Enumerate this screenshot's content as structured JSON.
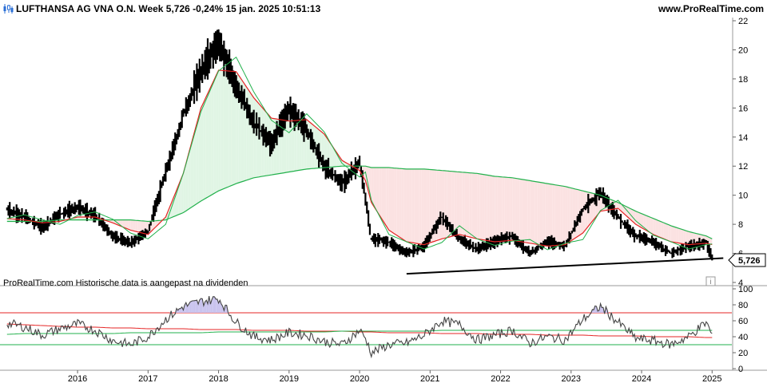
{
  "header": {
    "title": "LUFTHANSA AG VNA O.N. Week 5,726 -0,24% 15 jan. 2025 10:51:13",
    "site": "www.ProRealTime.com",
    "icon": "candlestick-icon"
  },
  "footnote": "ProRealTime.com  Historische data is aangepast na dividenden",
  "info_icon": "info-icon",
  "colors": {
    "price": "#000000",
    "ma_fast": "#e52424",
    "ma_slow": "#22b14c",
    "fill_red": "#fbe2e2",
    "fill_green": "#e0f5e4",
    "rsi_line": "#444444",
    "rsi_over_fill": "#c9c3ee",
    "grid": "#c8c8c8"
  },
  "last_price_label": "5,726",
  "chart_data": [
    {
      "type": "line",
      "title": "",
      "x": [
        "2015-01",
        "2015-04",
        "2015-07",
        "2015-10",
        "2016-01",
        "2016-04",
        "2016-07",
        "2016-10",
        "2017-01",
        "2017-04",
        "2017-07",
        "2017-10",
        "2018-01",
        "2018-04",
        "2018-07",
        "2018-10",
        "2019-01",
        "2019-04",
        "2019-07",
        "2019-10",
        "2020-01",
        "2020-02",
        "2020-03",
        "2020-06",
        "2020-09",
        "2020-12",
        "2021-03",
        "2021-06",
        "2021-09",
        "2021-12",
        "2022-03",
        "2022-06",
        "2022-09",
        "2022-12",
        "2023-03",
        "2023-06",
        "2023-09",
        "2023-12",
        "2024-03",
        "2024-06",
        "2024-09",
        "2024-12",
        "2025-01"
      ],
      "series": [
        {
          "values": [
            9.0,
            8.5,
            7.8,
            8.7,
            9.2,
            8.6,
            7.2,
            6.7,
            7.5,
            11.5,
            15.5,
            18.5,
            20.5,
            17.5,
            15.0,
            13.5,
            16.0,
            14.5,
            12.0,
            10.8,
            12.2,
            9.8,
            7.0,
            6.8,
            6.0,
            6.5,
            8.5,
            7.0,
            6.3,
            6.8,
            7.2,
            6.0,
            6.8,
            6.5,
            9.0,
            10.2,
            8.5,
            7.2,
            6.8,
            6.0,
            6.5,
            6.7,
            5.726
          ]
        },
        {
          "name": "",
          "values": [
            8.4,
            8.3,
            8.1,
            8.2,
            8.5,
            8.5,
            8.1,
            7.6,
            7.3,
            8.5,
            11.5,
            16.0,
            18.6,
            18.5,
            16.7,
            15.3,
            15.1,
            15.2,
            14.2,
            12.4,
            11.7,
            11.0,
            9.5,
            7.6,
            6.8,
            6.6,
            7.0,
            7.3,
            7.0,
            6.8,
            6.9,
            6.7,
            6.5,
            6.6,
            7.4,
            8.9,
            9.1,
            8.0,
            7.3,
            6.8,
            6.6,
            6.7,
            6.6
          ]
        },
        {
          "name": "",
          "values": [
            8.2,
            8.2,
            8.2,
            8.3,
            8.3,
            8.3,
            8.3,
            8.3,
            8.2,
            8.3,
            8.8,
            9.6,
            10.3,
            10.8,
            11.2,
            11.4,
            11.6,
            11.8,
            11.9,
            12.0,
            12.0,
            12.0,
            11.9,
            11.9,
            11.8,
            11.8,
            11.7,
            11.6,
            11.5,
            11.3,
            11.2,
            11.0,
            10.8,
            10.6,
            10.3,
            10.0,
            9.5,
            8.9,
            8.4,
            7.9,
            7.5,
            7.2,
            7.0
          ]
        }
      ],
      "ylim": [
        4,
        22
      ],
      "yticks": [
        4,
        6,
        8,
        10,
        12,
        14,
        16,
        18,
        20,
        22
      ],
      "xticks": [
        "2016",
        "2017",
        "2018",
        "2019",
        "2020",
        "2021",
        "2022",
        "2023",
        "2024",
        "2025"
      ],
      "support_line": {
        "x": [
          "2020-09",
          "2025-01"
        ],
        "y": [
          4.6,
          5.7
        ]
      },
      "scale": "linear"
    },
    {
      "type": "line",
      "title": "",
      "x": [
        "2015-01",
        "2015-04",
        "2015-07",
        "2015-10",
        "2016-01",
        "2016-04",
        "2016-07",
        "2016-10",
        "2017-01",
        "2017-04",
        "2017-07",
        "2017-10",
        "2018-01",
        "2018-04",
        "2018-07",
        "2018-10",
        "2019-01",
        "2019-04",
        "2019-07",
        "2019-10",
        "2020-01",
        "2020-02",
        "2020-03",
        "2020-06",
        "2020-09",
        "2020-12",
        "2021-03",
        "2021-06",
        "2021-09",
        "2021-12",
        "2022-03",
        "2022-06",
        "2022-09",
        "2022-12",
        "2023-03",
        "2023-06",
        "2023-09",
        "2023-12",
        "2024-03",
        "2024-06",
        "2024-09",
        "2024-12",
        "2025-01"
      ],
      "series": [
        {
          "values": [
            57,
            52,
            42,
            50,
            56,
            48,
            35,
            30,
            40,
            62,
            78,
            84,
            88,
            58,
            40,
            36,
            45,
            42,
            34,
            30,
            48,
            38,
            20,
            30,
            32,
            42,
            60,
            55,
            36,
            42,
            48,
            32,
            40,
            36,
            62,
            78,
            58,
            38,
            35,
            30,
            40,
            58,
            42
          ]
        },
        {
          "name": "",
          "values": [
            56,
            55,
            54,
            53,
            52,
            52,
            51,
            51,
            50,
            50,
            50,
            49,
            49,
            49,
            48,
            48,
            48,
            47,
            47,
            47,
            46,
            46,
            46,
            45,
            45,
            45,
            44,
            44,
            44,
            43,
            43,
            43,
            42,
            42,
            42,
            41,
            41,
            41,
            40,
            40,
            40,
            39,
            39
          ]
        },
        {
          "name": "",
          "values": [
            43,
            44,
            44,
            44,
            44,
            44,
            44,
            45,
            45,
            45,
            45,
            45,
            46,
            46,
            46,
            46,
            46,
            46,
            46,
            47,
            47,
            47,
            47,
            47,
            47,
            47,
            48,
            48,
            48,
            48,
            48,
            48,
            48,
            48,
            48,
            48,
            48,
            48,
            48,
            48,
            48,
            48,
            48
          ]
        }
      ],
      "ylim": [
        0,
        100
      ],
      "yticks": [
        0,
        20,
        40,
        60,
        80,
        100
      ],
      "levels": [
        70,
        30
      ]
    }
  ]
}
